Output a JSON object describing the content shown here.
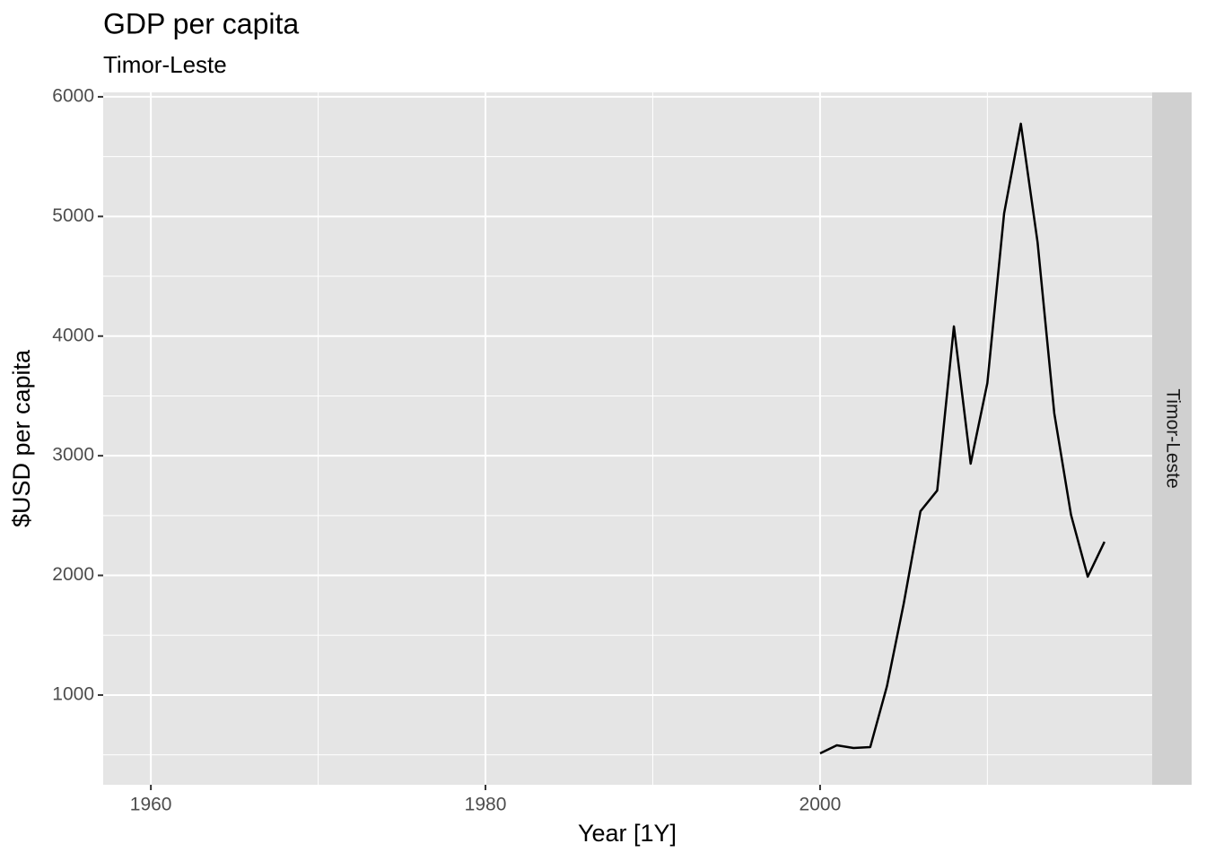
{
  "chart_data": {
    "type": "line",
    "title": "GDP per capita",
    "subtitle": "Timor-Leste",
    "strip_label": "Timor-Leste",
    "xlabel": "Year [1Y]",
    "ylabel": "$USD per capita",
    "x": [
      2000,
      2001,
      2002,
      2003,
      2004,
      2005,
      2006,
      2007,
      2008,
      2009,
      2010,
      2011,
      2012,
      2013,
      2014,
      2015,
      2016,
      2017
    ],
    "series": [
      {
        "name": "Timor-Leste",
        "color": "#000000",
        "values": [
          512,
          580,
          557,
          565,
          1075,
          1764,
          2536,
          2709,
          4081,
          2934,
          3608,
          5025,
          5775,
          4785,
          3354,
          2506,
          1989,
          2281
        ]
      }
    ],
    "xlim": [
      1957.15,
      2019.85
    ],
    "xticks": [
      1960,
      1980,
      2000
    ],
    "x_minor_ticks": [
      1970,
      1990,
      2010
    ],
    "ylim": [
      250,
      6037
    ],
    "yticks": [
      1000,
      2000,
      3000,
      4000,
      5000,
      6000
    ],
    "y_minor_ticks": [
      500,
      1500,
      2500,
      3500,
      4500,
      5500
    ],
    "grid": true
  }
}
